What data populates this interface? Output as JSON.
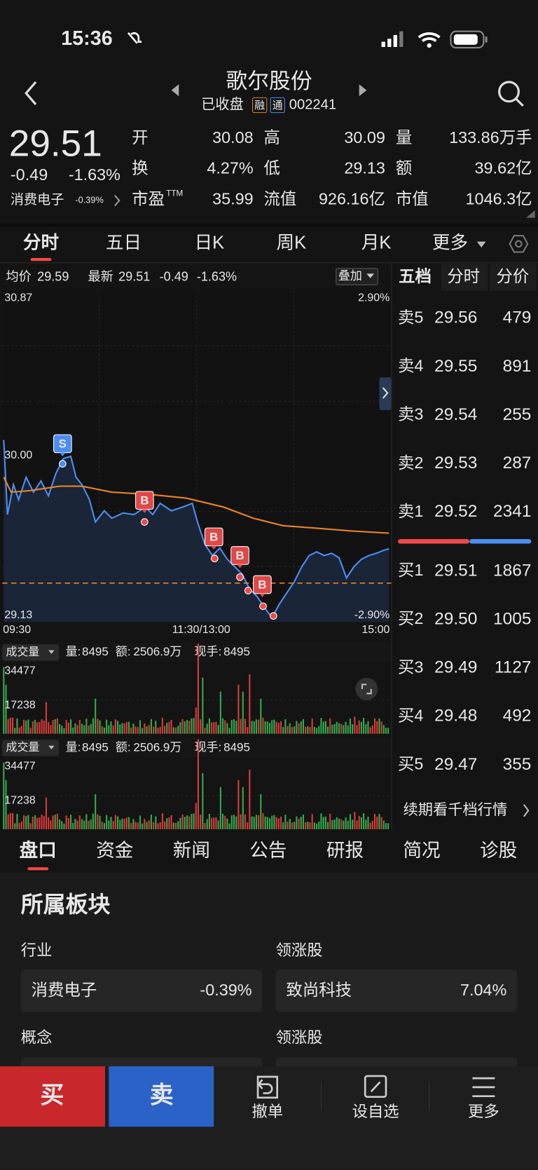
{
  "status_bar": {
    "time": "15:36"
  },
  "header": {
    "title": "歌尔股份",
    "state": "已收盘",
    "tags": [
      "融",
      "通"
    ],
    "code": "002241"
  },
  "quote": {
    "price": "29.51",
    "change": "-0.49",
    "change_pct": "-1.63%",
    "sector": "消费电子",
    "sector_pct": "-0.39%"
  },
  "stats": [
    [
      {
        "label": "开",
        "value": "30.08",
        "color": "#f04848"
      },
      {
        "label": "高",
        "value": "30.09",
        "color": "#f04848"
      },
      {
        "label": "量",
        "value": "133.86万手",
        "color": "#e8e8e8"
      }
    ],
    [
      {
        "label": "换",
        "value": "4.27%",
        "color": "#e8e8e8"
      },
      {
        "label": "低",
        "value": "29.13",
        "color": "#3fbf5a"
      },
      {
        "label": "额",
        "value": "39.62亿",
        "color": "#e8e8e8"
      }
    ],
    [
      {
        "label": "市盈",
        "sup": "TTM",
        "value": "35.99",
        "color": "#e8e8e8"
      },
      {
        "label": "流值",
        "value": "926.16亿",
        "color": "#e8e8e8"
      },
      {
        "label": "市值",
        "value": "1046.3亿",
        "color": "#e8e8e8"
      }
    ]
  ],
  "chart_tabs": [
    "分时",
    "五日",
    "日K",
    "周K",
    "月K",
    "更多"
  ],
  "chart_info": {
    "avg_label": "均价",
    "avg": "29.59",
    "latest_label": "最新",
    "latest": "29.51",
    "change": "-0.49",
    "change_pct": "-1.63%",
    "overlay": "叠加"
  },
  "chart_axis": {
    "high": "30.87",
    "high_pct": "2.90%",
    "prev_close": "30.00",
    "low": "29.13",
    "low_pct": "-2.90%",
    "times": [
      "09:30",
      "11:30/13:00",
      "15:00"
    ]
  },
  "markers": [
    "S",
    "B",
    "B",
    "B",
    "B"
  ],
  "volume_panels": [
    {
      "name": "成交量",
      "vol_label": "量:",
      "vol": "8495",
      "amt_label": "额:",
      "amt": "2506.9万",
      "hand_label": "现手:",
      "hand": "8495",
      "max": "34477",
      "mid": "17238"
    },
    {
      "name": "成交量",
      "vol_label": "量:",
      "vol": "8495",
      "amt_label": "额:",
      "amt": "2506.9万",
      "hand_label": "现手:",
      "hand": "8495",
      "max": "34477",
      "mid": "17238"
    }
  ],
  "order_book": {
    "tabs": [
      "五档",
      "分时",
      "分价"
    ],
    "asks": [
      {
        "label": "卖5",
        "price": "29.56",
        "volume": "479"
      },
      {
        "label": "卖4",
        "price": "29.55",
        "volume": "891"
      },
      {
        "label": "卖3",
        "price": "29.54",
        "volume": "255"
      },
      {
        "label": "卖2",
        "price": "29.53",
        "volume": "287"
      },
      {
        "label": "卖1",
        "price": "29.52",
        "volume": "2341"
      }
    ],
    "bids": [
      {
        "label": "买1",
        "price": "29.51",
        "volume": "1867"
      },
      {
        "label": "买2",
        "price": "29.50",
        "volume": "1005"
      },
      {
        "label": "买3",
        "price": "29.49",
        "volume": "1127"
      },
      {
        "label": "买4",
        "price": "29.48",
        "volume": "492"
      },
      {
        "label": "买5",
        "price": "29.47",
        "volume": "355"
      }
    ],
    "link": "续期看千档行情"
  },
  "detail_tabs": [
    "盘口",
    "资金",
    "新闻",
    "公告",
    "研报",
    "简况",
    "诊股"
  ],
  "sector_section": {
    "title": "所属板块",
    "industry_label": "行业",
    "leader_label": "领涨股",
    "industry": "消费电子",
    "industry_pct": "-0.39%",
    "leader": "致尚科技",
    "leader_pct": "7.04%",
    "concept_label": "概念",
    "concept_leader_label": "领涨股"
  },
  "action_bar": {
    "buy": "买",
    "sell": "卖",
    "cancel": "撤单",
    "watch": "设自选",
    "more": "更多"
  }
}
